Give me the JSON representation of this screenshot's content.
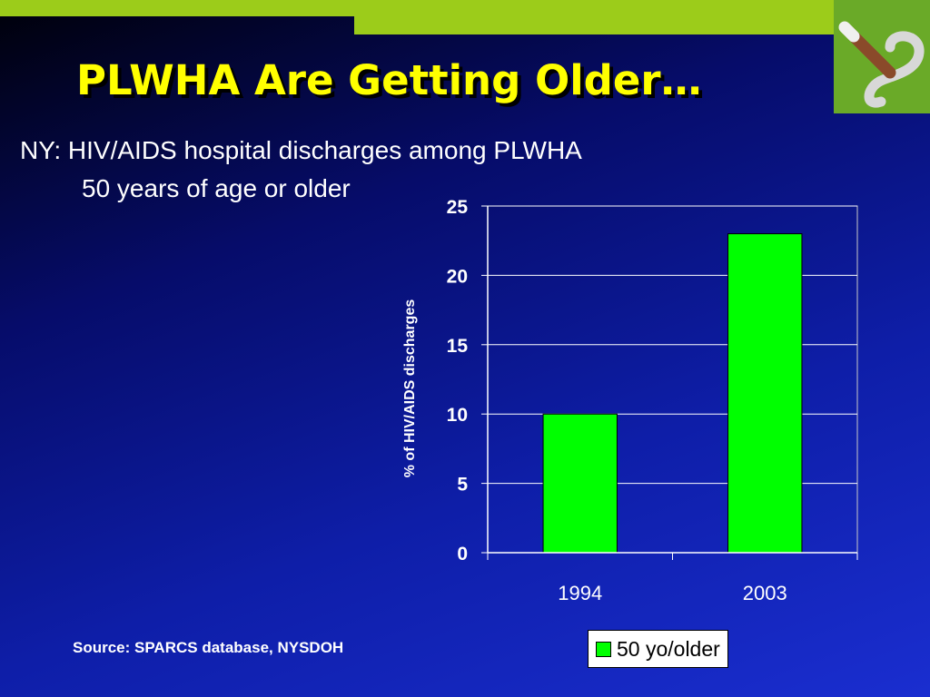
{
  "slide": {
    "title": "PLWHA Are Getting Older…",
    "subtitle_line1": "NY: HIV/AIDS hospital discharges among PLWHA",
    "subtitle_line2": "50 years of age or older",
    "source": "Source: SPARCS database, NYSDOH",
    "logo_icon": "no-smoking-cigarette-icon"
  },
  "colors": {
    "accent_bar": "#9ccc1a",
    "title": "#ffff00",
    "bar_fill": "#00ff00"
  },
  "chart_data": {
    "type": "bar",
    "categories": [
      "1994",
      "2003"
    ],
    "series": [
      {
        "name": "50 yo/older",
        "values": [
          10,
          23
        ]
      }
    ],
    "title": "",
    "xlabel": "",
    "ylabel": "% of HIV/AIDS discharges",
    "ylim": [
      0,
      25
    ],
    "yticks": [
      0,
      5,
      10,
      15,
      20,
      25
    ],
    "grid": true,
    "legend": "bottom-right"
  }
}
